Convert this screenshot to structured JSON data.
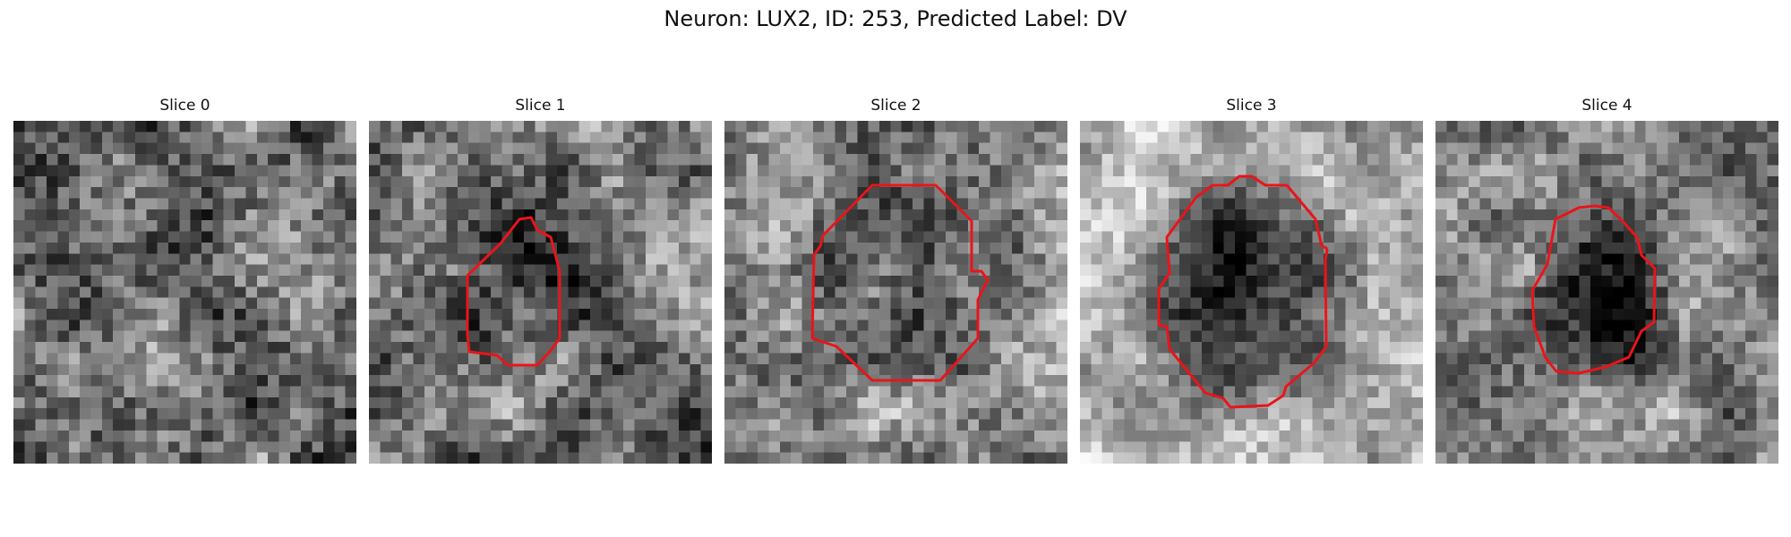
{
  "figure": {
    "title": "Neuron: LUX2, ID: 253, Predicted Label: DV"
  },
  "slices": [
    {
      "title": "Slice 0",
      "has_contour": false
    },
    {
      "title": "Slice 1",
      "has_contour": true
    },
    {
      "title": "Slice 2",
      "has_contour": true
    },
    {
      "title": "Slice 3",
      "has_contour": true
    },
    {
      "title": "Slice 4",
      "has_contour": true
    }
  ],
  "style": {
    "contour_color": "#e8151b",
    "colormap": "grayscale"
  }
}
